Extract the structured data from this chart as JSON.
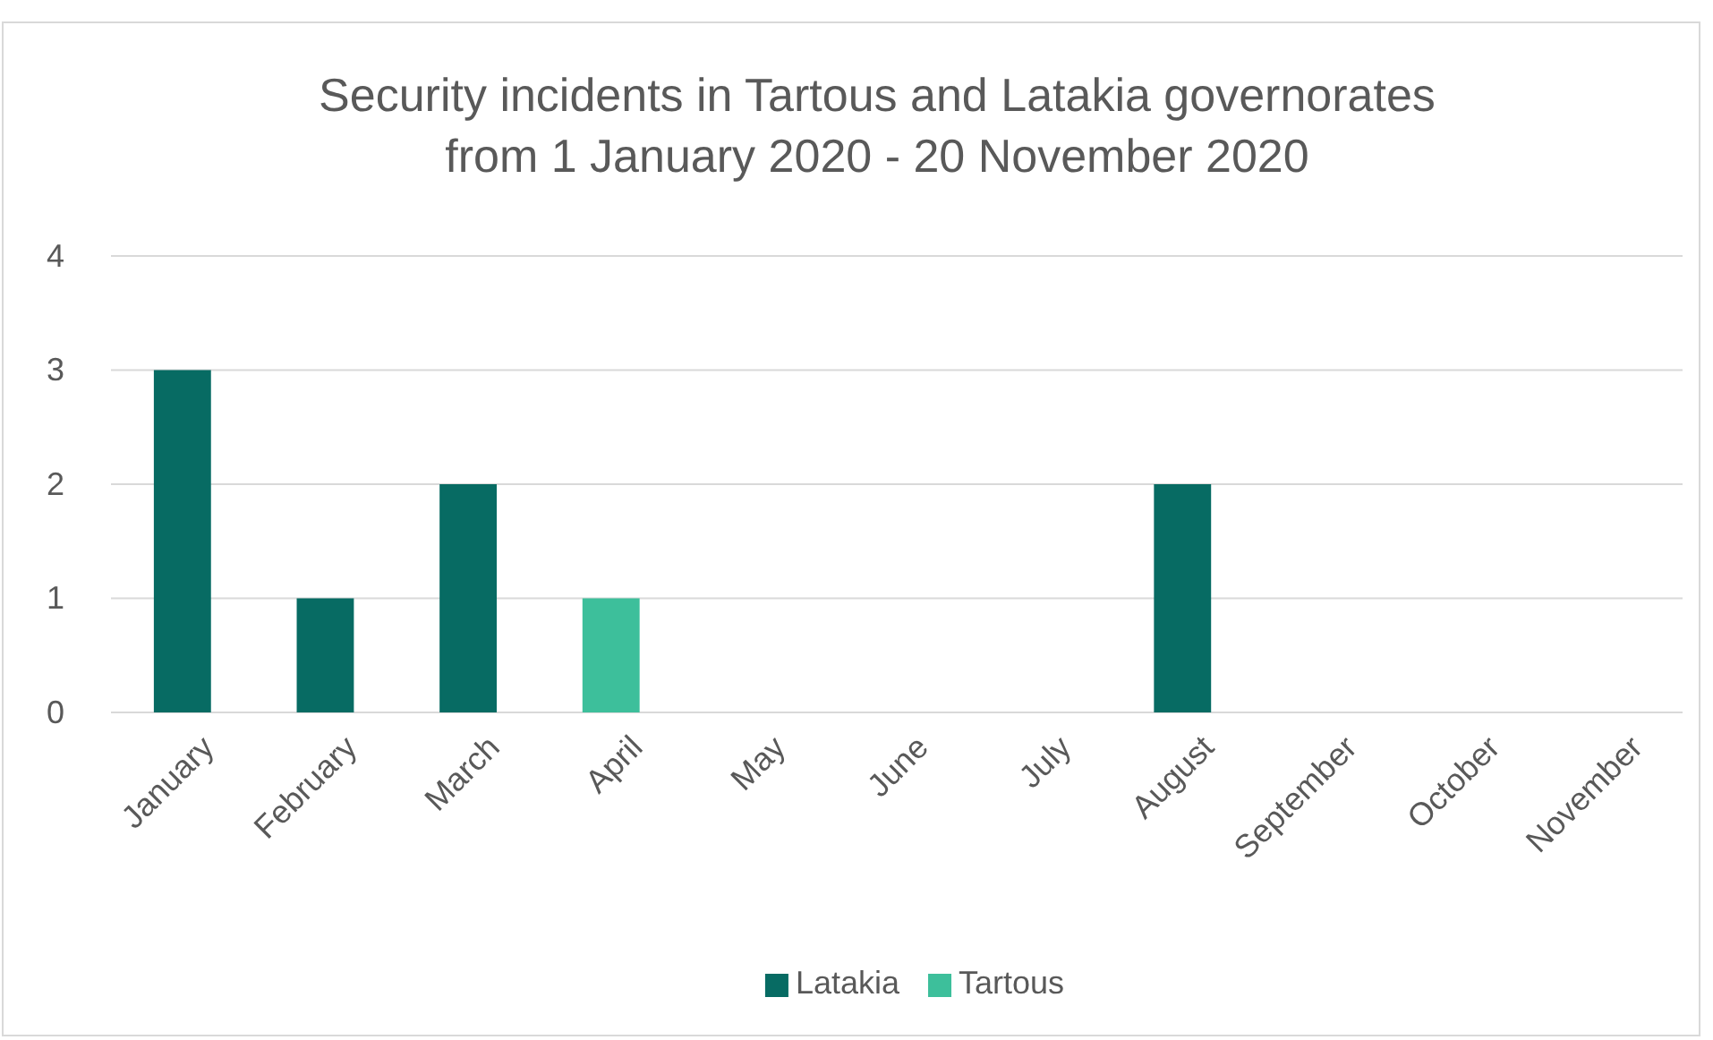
{
  "chart_data": {
    "type": "bar",
    "title": "Security incidents in Tartous and Latakia governorates\nfrom 1 January 2020 - 20 November 2020",
    "categories": [
      "January",
      "February",
      "March",
      "April",
      "May",
      "June",
      "July",
      "August",
      "September",
      "October",
      "November"
    ],
    "series": [
      {
        "name": "Latakia",
        "color": "#076b63",
        "values": [
          3,
          1,
          2,
          0,
          0,
          0,
          0,
          2,
          0,
          0,
          0
        ]
      },
      {
        "name": "Tartous",
        "color": "#3dbf9b",
        "values": [
          0,
          0,
          0,
          1,
          0,
          0,
          0,
          0,
          0,
          0,
          0
        ]
      }
    ],
    "stacked": true,
    "ylim": [
      0,
      4
    ],
    "yticks": [
      0,
      1,
      2,
      3,
      4
    ],
    "grid": "y",
    "legend": "bottom"
  }
}
